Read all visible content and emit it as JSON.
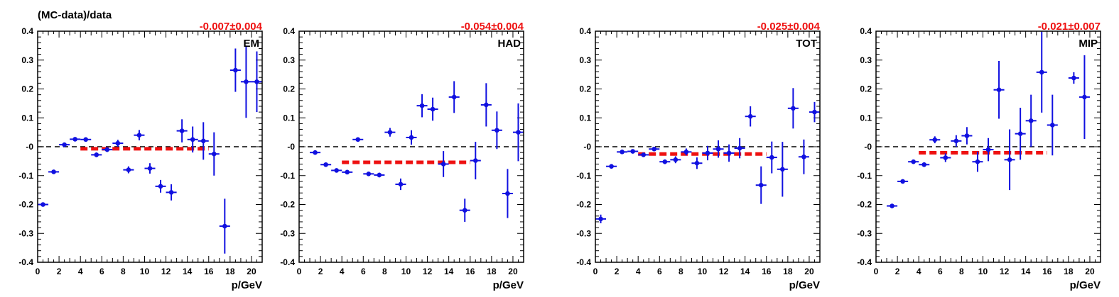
{
  "figure": {
    "ylabel": "(MC-data)/data",
    "xlabel": "p/GeV"
  },
  "colors": {
    "points": "#1010e0",
    "fit": "#ee1111",
    "frame": "#000000",
    "zero_line": "#000000"
  },
  "chart_data": [
    {
      "type": "scatter",
      "panel_label": "EM",
      "fit_result": "-0.007±0.004",
      "xlim": [
        0,
        21
      ],
      "ylim": [
        -0.4,
        0.4
      ],
      "xticks": [
        0,
        2,
        4,
        6,
        8,
        10,
        12,
        14,
        16,
        18,
        20
      ],
      "yticks": [
        -0.4,
        -0.3,
        -0.2,
        -0.1,
        0,
        0.1,
        0.2,
        0.3,
        0.4
      ],
      "ytick_labels": [
        "-0.4",
        "-0.3",
        "-0.2",
        "-0.1",
        "-0",
        "0.1",
        "0.2",
        "0.3",
        "0.4"
      ],
      "zero_line": true,
      "fit": {
        "x": [
          4,
          16
        ],
        "y": -0.007
      },
      "points": [
        {
          "x": 0.5,
          "y": -0.2,
          "err": 0.005
        },
        {
          "x": 1.5,
          "y": -0.087,
          "err": 0.005
        },
        {
          "x": 2.5,
          "y": 0.007,
          "err": 0.005
        },
        {
          "x": 3.5,
          "y": 0.026,
          "err": 0.005
        },
        {
          "x": 4.5,
          "y": 0.025,
          "err": 0.005
        },
        {
          "x": 5.5,
          "y": -0.028,
          "err": 0.008
        },
        {
          "x": 6.5,
          "y": -0.01,
          "err": 0.008
        },
        {
          "x": 7.5,
          "y": 0.012,
          "err": 0.012
        },
        {
          "x": 8.5,
          "y": -0.08,
          "err": 0.012
        },
        {
          "x": 9.5,
          "y": 0.04,
          "err": 0.018
        },
        {
          "x": 10.5,
          "y": -0.075,
          "err": 0.018
        },
        {
          "x": 11.5,
          "y": -0.137,
          "err": 0.022
        },
        {
          "x": 12.5,
          "y": -0.158,
          "err": 0.028
        },
        {
          "x": 13.5,
          "y": 0.055,
          "err": 0.04
        },
        {
          "x": 14.5,
          "y": 0.025,
          "err": 0.045
        },
        {
          "x": 15.5,
          "y": 0.02,
          "err": 0.065
        },
        {
          "x": 16.5,
          "y": -0.025,
          "err": 0.075
        },
        {
          "x": 17.5,
          "y": -0.275,
          "err": 0.095
        },
        {
          "x": 18.5,
          "y": 0.265,
          "err": 0.075
        },
        {
          "x": 19.5,
          "y": 0.225,
          "err": 0.125
        },
        {
          "x": 20.5,
          "y": 0.225,
          "err": 0.105
        }
      ]
    },
    {
      "type": "scatter",
      "panel_label": "HAD",
      "fit_result": "-0.054±0.004",
      "xlim": [
        0,
        21
      ],
      "ylim": [
        -0.4,
        0.4
      ],
      "xticks": [
        0,
        2,
        4,
        6,
        8,
        10,
        12,
        14,
        16,
        18,
        20
      ],
      "yticks": [
        -0.4,
        -0.3,
        -0.2,
        -0.1,
        0,
        0.1,
        0.2,
        0.3,
        0.4
      ],
      "ytick_labels": [
        "-0.4",
        "-0.3",
        "-0.2",
        "-0.1",
        "-0",
        "0.1",
        "0.2",
        "0.3",
        "0.4"
      ],
      "zero_line": true,
      "fit": {
        "x": [
          4,
          16
        ],
        "y": -0.054
      },
      "points": [
        {
          "x": 1.5,
          "y": -0.02,
          "err": 0.005
        },
        {
          "x": 2.5,
          "y": -0.062,
          "err": 0.005
        },
        {
          "x": 3.5,
          "y": -0.082,
          "err": 0.005
        },
        {
          "x": 4.5,
          "y": -0.088,
          "err": 0.005
        },
        {
          "x": 5.5,
          "y": 0.025,
          "err": 0.005
        },
        {
          "x": 6.5,
          "y": -0.094,
          "err": 0.005
        },
        {
          "x": 7.5,
          "y": -0.098,
          "err": 0.008
        },
        {
          "x": 8.5,
          "y": 0.05,
          "err": 0.015
        },
        {
          "x": 9.5,
          "y": -0.13,
          "err": 0.02
        },
        {
          "x": 10.5,
          "y": 0.032,
          "err": 0.025
        },
        {
          "x": 11.5,
          "y": 0.142,
          "err": 0.04
        },
        {
          "x": 12.5,
          "y": 0.13,
          "err": 0.04
        },
        {
          "x": 13.5,
          "y": -0.06,
          "err": 0.045
        },
        {
          "x": 14.5,
          "y": 0.172,
          "err": 0.055
        },
        {
          "x": 15.5,
          "y": -0.22,
          "err": 0.04
        },
        {
          "x": 16.5,
          "y": -0.048,
          "err": 0.065
        },
        {
          "x": 17.5,
          "y": 0.145,
          "err": 0.075
        },
        {
          "x": 18.5,
          "y": 0.057,
          "err": 0.065
        },
        {
          "x": 19.5,
          "y": -0.162,
          "err": 0.085
        },
        {
          "x": 20.5,
          "y": 0.05,
          "err": 0.1
        }
      ]
    },
    {
      "type": "scatter",
      "panel_label": "TOT",
      "fit_result": "-0.025±0.004",
      "xlim": [
        0,
        21
      ],
      "ylim": [
        -0.4,
        0.4
      ],
      "xticks": [
        0,
        2,
        4,
        6,
        8,
        10,
        12,
        14,
        16,
        18,
        20
      ],
      "yticks": [
        -0.4,
        -0.3,
        -0.2,
        -0.1,
        0,
        0.1,
        0.2,
        0.3,
        0.4
      ],
      "ytick_labels": [
        "-0.4",
        "-0.3",
        "-0.2",
        "-0.1",
        "-0",
        "0.1",
        "0.2",
        "0.3",
        "0.4"
      ],
      "zero_line": true,
      "fit": {
        "x": [
          4,
          16
        ],
        "y": -0.025
      },
      "points": [
        {
          "x": 0.5,
          "y": -0.25,
          "err": 0.015
        },
        {
          "x": 1.5,
          "y": -0.068,
          "err": 0.008
        },
        {
          "x": 2.5,
          "y": -0.018,
          "err": 0.005
        },
        {
          "x": 3.5,
          "y": -0.016,
          "err": 0.005
        },
        {
          "x": 4.5,
          "y": -0.028,
          "err": 0.005
        },
        {
          "x": 5.5,
          "y": -0.008,
          "err": 0.005
        },
        {
          "x": 6.5,
          "y": -0.052,
          "err": 0.008
        },
        {
          "x": 7.5,
          "y": -0.045,
          "err": 0.012
        },
        {
          "x": 8.5,
          "y": -0.018,
          "err": 0.012
        },
        {
          "x": 9.5,
          "y": -0.057,
          "err": 0.02
        },
        {
          "x": 10.5,
          "y": -0.022,
          "err": 0.025
        },
        {
          "x": 11.5,
          "y": -0.008,
          "err": 0.03
        },
        {
          "x": 12.5,
          "y": -0.022,
          "err": 0.03
        },
        {
          "x": 13.5,
          "y": -0.005,
          "err": 0.035
        },
        {
          "x": 14.5,
          "y": 0.105,
          "err": 0.035
        },
        {
          "x": 15.5,
          "y": -0.133,
          "err": 0.065
        },
        {
          "x": 16.5,
          "y": -0.037,
          "err": 0.055
        },
        {
          "x": 17.5,
          "y": -0.078,
          "err": 0.095
        },
        {
          "x": 18.5,
          "y": 0.133,
          "err": 0.07
        },
        {
          "x": 19.5,
          "y": -0.035,
          "err": 0.06
        },
        {
          "x": 20.5,
          "y": 0.12,
          "err": 0.035
        }
      ]
    },
    {
      "type": "scatter",
      "panel_label": "MIP",
      "fit_result": "-0.021±0.007",
      "xlim": [
        0,
        21
      ],
      "ylim": [
        -0.4,
        0.4
      ],
      "xticks": [
        0,
        2,
        4,
        6,
        8,
        10,
        12,
        14,
        16,
        18,
        20
      ],
      "yticks": [
        -0.4,
        -0.3,
        -0.2,
        -0.1,
        0,
        0.1,
        0.2,
        0.3,
        0.4
      ],
      "ytick_labels": [
        "-0.4",
        "-0.3",
        "-0.2",
        "-0.1",
        "-0",
        "0.1",
        "0.2",
        "0.3",
        "0.4"
      ],
      "zero_line": true,
      "fit": {
        "x": [
          4,
          16
        ],
        "y": -0.021
      },
      "points": [
        {
          "x": 1.5,
          "y": -0.205,
          "err": 0.005
        },
        {
          "x": 2.5,
          "y": -0.12,
          "err": 0.005
        },
        {
          "x": 3.5,
          "y": -0.052,
          "err": 0.005
        },
        {
          "x": 4.5,
          "y": -0.062,
          "err": 0.008
        },
        {
          "x": 5.5,
          "y": 0.024,
          "err": 0.012
        },
        {
          "x": 6.5,
          "y": -0.038,
          "err": 0.015
        },
        {
          "x": 7.5,
          "y": 0.02,
          "err": 0.02
        },
        {
          "x": 8.5,
          "y": 0.038,
          "err": 0.03
        },
        {
          "x": 9.5,
          "y": -0.052,
          "err": 0.035
        },
        {
          "x": 10.5,
          "y": -0.01,
          "err": 0.04
        },
        {
          "x": 11.5,
          "y": 0.197,
          "err": 0.1
        },
        {
          "x": 12.5,
          "y": -0.045,
          "err": 0.105
        },
        {
          "x": 13.5,
          "y": 0.045,
          "err": 0.09
        },
        {
          "x": 14.5,
          "y": 0.09,
          "err": 0.09
        },
        {
          "x": 15.5,
          "y": 0.258,
          "err": 0.14
        },
        {
          "x": 16.5,
          "y": 0.075,
          "err": 0.105
        },
        {
          "x": 18.5,
          "y": 0.238,
          "err": 0.02
        },
        {
          "x": 19.5,
          "y": 0.172,
          "err": 0.145
        }
      ]
    }
  ]
}
